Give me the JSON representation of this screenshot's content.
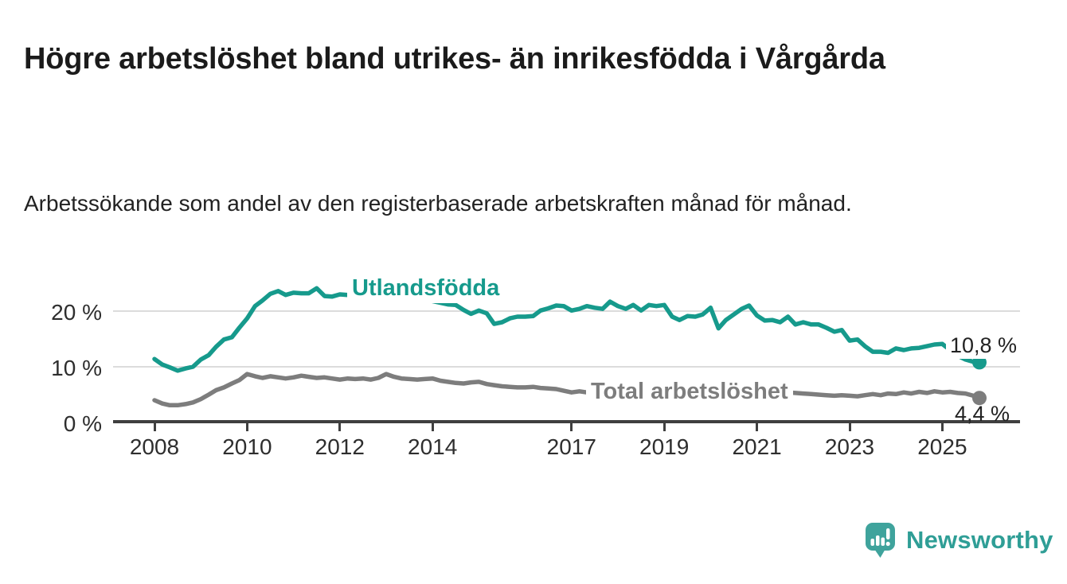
{
  "header": {
    "title": "Högre arbetslöshet bland utrikes- än inrikesfödda i Vårgårda",
    "subtitle": "Arbetssökande som andel av den registerbaserade arbetskraften månad för månad."
  },
  "footer": {
    "brand": "Newsworthy",
    "brand_color": "#2f9e96"
  },
  "chart_data": {
    "type": "line",
    "title": "Högre arbetslöshet bland utrikes- än inrikesfödda i Vårgårda",
    "subtitle": "Arbetssökande som andel av den registerbaserade arbetskraften månad för månad.",
    "xlabel": "",
    "ylabel": "",
    "grid": "horizontal",
    "legend_position": "inline-labels",
    "x_range": [
      2008,
      2025.8
    ],
    "ylim": [
      0,
      25
    ],
    "y_ticks": {
      "values": [
        0,
        10,
        20
      ],
      "labels": [
        "0 %",
        "10 %",
        "20 %"
      ]
    },
    "x_ticks": {
      "years": [
        2008,
        2010,
        2012,
        2014,
        2017,
        2019,
        2021,
        2023,
        2025
      ],
      "labels": [
        "2008",
        "2010",
        "2012",
        "2014",
        "2017",
        "2019",
        "2021",
        "2023",
        "2025"
      ]
    },
    "x": [
      2008,
      2008.17,
      2008.33,
      2008.5,
      2008.67,
      2008.83,
      2009,
      2009.17,
      2009.33,
      2009.5,
      2009.67,
      2009.83,
      2010,
      2010.17,
      2010.33,
      2010.5,
      2010.67,
      2010.83,
      2011,
      2011.17,
      2011.33,
      2011.5,
      2011.67,
      2011.83,
      2012,
      2012.17,
      2012.33,
      2012.5,
      2012.67,
      2012.83,
      2013,
      2013.17,
      2013.33,
      2013.5,
      2013.67,
      2013.83,
      2014,
      2014.17,
      2014.33,
      2014.5,
      2014.67,
      2014.83,
      2015,
      2015.17,
      2015.33,
      2015.5,
      2015.67,
      2015.83,
      2016,
      2016.17,
      2016.33,
      2016.5,
      2016.67,
      2016.83,
      2017,
      2017.17,
      2017.33,
      2017.5,
      2017.67,
      2017.83,
      2018,
      2018.17,
      2018.33,
      2018.5,
      2018.67,
      2018.83,
      2019,
      2019.17,
      2019.33,
      2019.5,
      2019.67,
      2019.83,
      2020,
      2020.17,
      2020.33,
      2020.5,
      2020.67,
      2020.83,
      2021,
      2021.17,
      2021.33,
      2021.5,
      2021.67,
      2021.83,
      2022,
      2022.17,
      2022.33,
      2022.5,
      2022.67,
      2022.83,
      2023,
      2023.17,
      2023.33,
      2023.5,
      2023.67,
      2023.83,
      2024,
      2024.17,
      2024.33,
      2024.5,
      2024.67,
      2024.83,
      2025,
      2025.17,
      2025.33,
      2025.5,
      2025.67,
      2025.8
    ],
    "series": [
      {
        "name": "Utlandsfödda",
        "color": "#169a8c",
        "end_label": "10,8 %",
        "end_value": 10.8,
        "values": [
          11.4,
          10.4,
          9.9,
          9.3,
          9.7,
          10.0,
          11.3,
          12.1,
          13.6,
          14.9,
          15.3,
          17.0,
          18.7,
          20.9,
          21.9,
          23.1,
          23.6,
          22.9,
          23.3,
          23.2,
          23.2,
          24.1,
          22.7,
          22.6,
          23.0,
          22.9,
          22.6,
          22.8,
          23.1,
          22.8,
          22.7,
          23.0,
          22.8,
          22.5,
          22.3,
          22.1,
          21.8,
          21.5,
          21.2,
          21.1,
          20.2,
          19.5,
          20.1,
          19.6,
          17.7,
          18.0,
          18.7,
          19.0,
          19.0,
          19.1,
          20.1,
          20.5,
          21.0,
          20.9,
          20.1,
          20.4,
          20.9,
          20.6,
          20.4,
          21.7,
          20.9,
          20.4,
          21.1,
          20.1,
          21.1,
          20.9,
          21.1,
          19.0,
          18.4,
          19.1,
          19.0,
          19.4,
          20.6,
          16.9,
          18.4,
          19.4,
          20.4,
          21.0,
          19.2,
          18.3,
          18.4,
          18.0,
          19.0,
          17.6,
          18.0,
          17.6,
          17.6,
          17.0,
          16.3,
          16.6,
          14.7,
          14.9,
          13.7,
          12.7,
          12.7,
          12.5,
          13.3,
          13.0,
          13.3,
          13.4,
          13.7,
          14.0,
          14.1,
          13.0,
          12.0,
          11.3,
          10.9,
          10.8
        ]
      },
      {
        "name": "Total arbetslöshet",
        "color": "#7d7d7d",
        "end_label": "4,4 %",
        "end_value": 4.4,
        "values": [
          4.0,
          3.4,
          3.1,
          3.1,
          3.3,
          3.6,
          4.2,
          5.0,
          5.8,
          6.3,
          7.0,
          7.6,
          8.7,
          8.3,
          8.0,
          8.3,
          8.1,
          7.9,
          8.1,
          8.4,
          8.2,
          8.0,
          8.1,
          7.9,
          7.7,
          7.9,
          7.8,
          7.9,
          7.7,
          8.0,
          8.7,
          8.2,
          7.9,
          7.8,
          7.7,
          7.8,
          7.9,
          7.5,
          7.3,
          7.1,
          7.0,
          7.2,
          7.3,
          6.9,
          6.7,
          6.5,
          6.4,
          6.3,
          6.3,
          6.4,
          6.2,
          6.1,
          6.0,
          5.7,
          5.4,
          5.6,
          5.4,
          5.5,
          5.3,
          5.2,
          5.2,
          5.1,
          5.0,
          5.0,
          4.9,
          5.0,
          5.1,
          5.0,
          5.2,
          5.3,
          5.2,
          5.3,
          5.5,
          6.2,
          6.5,
          6.4,
          6.2,
          6.0,
          5.9,
          5.8,
          5.6,
          5.5,
          5.4,
          5.3,
          5.2,
          5.1,
          5.0,
          4.9,
          4.8,
          4.9,
          4.8,
          4.7,
          4.9,
          5.1,
          4.9,
          5.2,
          5.1,
          5.4,
          5.2,
          5.5,
          5.3,
          5.6,
          5.4,
          5.5,
          5.3,
          5.2,
          4.8,
          4.4
        ]
      }
    ]
  }
}
